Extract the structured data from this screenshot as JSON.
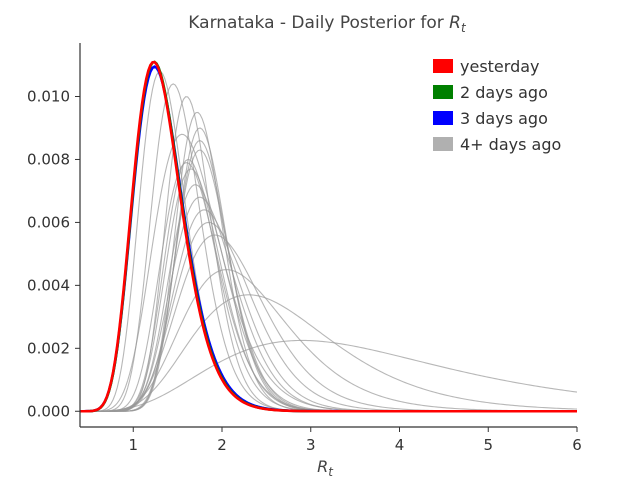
{
  "chart_data": {
    "type": "line",
    "title": "Karnataka - Daily Posterior for ",
    "title_math": "R",
    "title_sub": "t",
    "xlabel_main": "R",
    "xlabel_sub": "t",
    "xlim": [
      0.4,
      6
    ],
    "ylim": [
      -0.0005,
      0.0117
    ],
    "xticks": [
      1,
      2,
      3,
      4,
      5,
      6
    ],
    "xtick_labels": [
      "1",
      "2",
      "3",
      "4",
      "5",
      "6"
    ],
    "yticks": [
      0.0,
      0.002,
      0.004,
      0.006,
      0.008,
      0.01
    ],
    "ytick_labels": [
      "0.000",
      "0.002",
      "0.004",
      "0.006",
      "0.008",
      "0.010"
    ],
    "grid": false,
    "legend_position": "top-right",
    "legend": [
      {
        "label": "yesterday",
        "color": "#ff0000"
      },
      {
        "label": "2 days ago",
        "color": "#008000"
      },
      {
        "label": "3 days ago",
        "color": "#0000ff"
      },
      {
        "label": "4+ days ago",
        "color": "#b0b0b0"
      }
    ],
    "series": [
      {
        "color": "#999999",
        "opacity": 0.7,
        "peak_x": 2.9,
        "peak_y": 0.00225,
        "log_sigma": 0.45
      },
      {
        "color": "#999999",
        "opacity": 0.7,
        "peak_x": 2.3,
        "peak_y": 0.0037,
        "log_sigma": 0.34
      },
      {
        "color": "#999999",
        "opacity": 0.7,
        "peak_x": 2.05,
        "peak_y": 0.0045,
        "log_sigma": 0.29
      },
      {
        "color": "#999999",
        "opacity": 0.7,
        "peak_x": 1.92,
        "peak_y": 0.0056,
        "log_sigma": 0.25
      },
      {
        "color": "#999999",
        "opacity": 0.7,
        "peak_x": 1.85,
        "peak_y": 0.006,
        "log_sigma": 0.23
      },
      {
        "color": "#999999",
        "opacity": 0.7,
        "peak_x": 1.8,
        "peak_y": 0.0064,
        "log_sigma": 0.21
      },
      {
        "color": "#999999",
        "opacity": 0.7,
        "peak_x": 1.75,
        "peak_y": 0.0068,
        "log_sigma": 0.205
      },
      {
        "color": "#999999",
        "opacity": 0.7,
        "peak_x": 1.7,
        "peak_y": 0.0072,
        "log_sigma": 0.19
      },
      {
        "color": "#999999",
        "opacity": 0.7,
        "peak_x": 1.65,
        "peak_y": 0.0077,
        "log_sigma": 0.185
      },
      {
        "color": "#999999",
        "opacity": 0.7,
        "peak_x": 1.62,
        "peak_y": 0.008,
        "log_sigma": 0.18
      },
      {
        "color": "#999999",
        "opacity": 0.7,
        "peak_x": 1.6,
        "peak_y": 0.0079,
        "log_sigma": 0.2
      },
      {
        "color": "#999999",
        "opacity": 0.7,
        "peak_x": 1.75,
        "peak_y": 0.0083,
        "log_sigma": 0.17
      },
      {
        "color": "#999999",
        "opacity": 0.7,
        "peak_x": 1.75,
        "peak_y": 0.0086,
        "log_sigma": 0.165
      },
      {
        "color": "#999999",
        "opacity": 0.7,
        "peak_x": 1.75,
        "peak_y": 0.009,
        "log_sigma": 0.16
      },
      {
        "color": "#999999",
        "opacity": 0.7,
        "peak_x": 1.72,
        "peak_y": 0.0095,
        "log_sigma": 0.155
      },
      {
        "color": "#999999",
        "opacity": 0.7,
        "peak_x": 1.6,
        "peak_y": 0.01,
        "log_sigma": 0.16
      },
      {
        "color": "#999999",
        "opacity": 0.7,
        "peak_x": 1.45,
        "peak_y": 0.0104,
        "log_sigma": 0.19
      },
      {
        "color": "#999999",
        "opacity": 0.7,
        "peak_x": 1.55,
        "peak_y": 0.0088,
        "log_sigma": 0.24
      },
      {
        "color": "#999999",
        "opacity": 0.7,
        "peak_x": 1.3,
        "peak_y": 0.0108,
        "log_sigma": 0.2
      },
      {
        "color": "#0000ff",
        "opacity": 1.0,
        "peak_x": 1.24,
        "peak_y": 0.01095,
        "log_sigma": 0.225
      },
      {
        "color": "#008000",
        "opacity": 1.0,
        "peak_x": 1.235,
        "peak_y": 0.0111,
        "log_sigma": 0.222
      },
      {
        "color": "#ff0000",
        "opacity": 1.0,
        "peak_x": 1.23,
        "peak_y": 0.0111,
        "log_sigma": 0.222
      }
    ]
  }
}
